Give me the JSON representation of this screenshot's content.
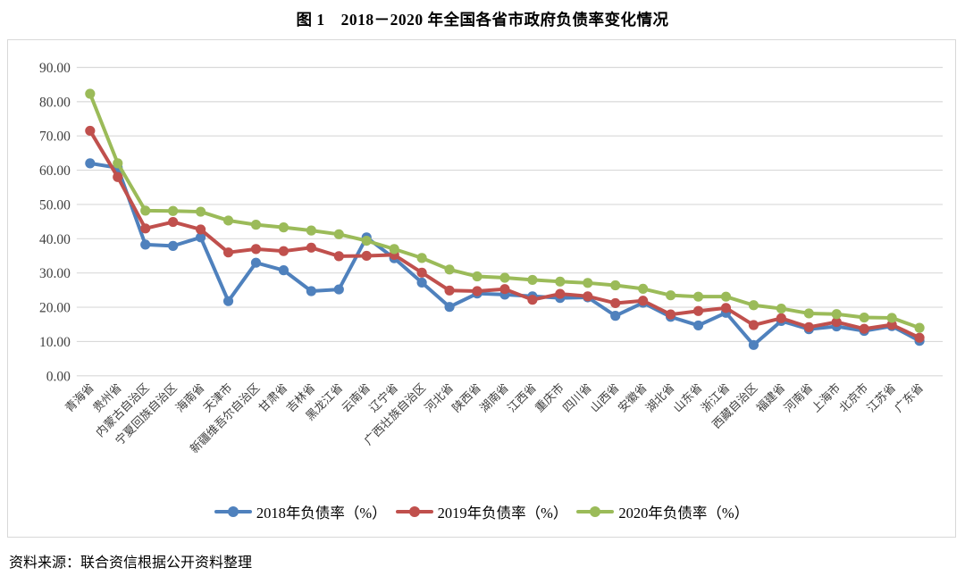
{
  "figure": {
    "title": "图 1　2018－2020 年全国各省市政府负债率变化情况",
    "source": "资料来源：联合资信根据公开资料整理"
  },
  "colors": {
    "series_2018": "#4F81BD",
    "series_2019": "#C0504D",
    "series_2020": "#9BBB59",
    "gridline": "#D9D9D9",
    "axis_text": "#3F3F3F"
  },
  "chart_data": {
    "type": "line",
    "title": "图 1　2018－2020 年全国各省市政府负债率变化情况",
    "grid": true,
    "legend_position": "bottom",
    "ylim": [
      0,
      90
    ],
    "y_ticks": [
      "0.00",
      "10.00",
      "20.00",
      "30.00",
      "40.00",
      "50.00",
      "60.00",
      "70.00",
      "80.00",
      "90.00"
    ],
    "categories": [
      "青海省",
      "贵州省",
      "内蒙古自治区",
      "宁夏回族自治区",
      "海南省",
      "天津市",
      "新疆维吾尔自治区",
      "甘肃省",
      "吉林省",
      "黑龙江省",
      "云南省",
      "辽宁省",
      "广西壮族自治区",
      "河北省",
      "陕西省",
      "湖南省",
      "江西省",
      "重庆市",
      "四川省",
      "山西省",
      "安徽省",
      "湖北省",
      "山东省",
      "浙江省",
      "西藏自治区",
      "福建省",
      "河南省",
      "上海市",
      "北京市",
      "江苏省",
      "广东省"
    ],
    "series": [
      {
        "name": "2018年负债率（%）",
        "color": "#4F81BD",
        "values": [
          62.0,
          60.7,
          38.3,
          37.9,
          40.4,
          21.8,
          33.0,
          30.8,
          24.7,
          25.2,
          40.4,
          34.3,
          27.2,
          20.1,
          24.0,
          23.7,
          23.2,
          22.7,
          22.9,
          17.5,
          21.3,
          17.2,
          14.7,
          18.4,
          9.0,
          16.0,
          13.6,
          14.4,
          13.1,
          14.5,
          10.2
        ]
      },
      {
        "name": "2019年负债率（%）",
        "color": "#C0504D",
        "values": [
          71.5,
          58.0,
          43.0,
          44.9,
          42.7,
          36.0,
          37.0,
          36.4,
          37.4,
          34.9,
          35.0,
          35.3,
          30.1,
          24.9,
          24.7,
          25.3,
          22.2,
          23.9,
          23.2,
          21.2,
          21.9,
          17.9,
          18.9,
          19.8,
          14.8,
          16.8,
          14.2,
          15.7,
          13.7,
          14.9,
          11.1
        ]
      },
      {
        "name": "2020年负债率（%）",
        "color": "#9BBB59",
        "values": [
          82.3,
          62.0,
          48.2,
          48.1,
          47.9,
          45.3,
          44.1,
          43.3,
          42.4,
          41.3,
          39.4,
          37.0,
          34.4,
          31.0,
          29.0,
          28.6,
          28.0,
          27.5,
          27.1,
          26.4,
          25.4,
          23.5,
          23.1,
          23.1,
          20.6,
          19.6,
          18.2,
          18.0,
          17.0,
          16.9,
          14.0
        ]
      }
    ]
  }
}
